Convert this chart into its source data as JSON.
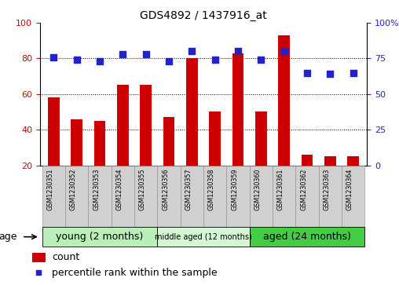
{
  "title": "GDS4892 / 1437916_at",
  "samples": [
    "GSM1230351",
    "GSM1230352",
    "GSM1230353",
    "GSM1230354",
    "GSM1230355",
    "GSM1230356",
    "GSM1230357",
    "GSM1230358",
    "GSM1230359",
    "GSM1230360",
    "GSM1230361",
    "GSM1230362",
    "GSM1230363",
    "GSM1230364"
  ],
  "count_values": [
    58,
    46,
    45,
    65,
    65,
    47,
    80,
    50,
    83,
    50,
    93,
    26,
    25,
    25
  ],
  "percentile_values": [
    76,
    74,
    73,
    78,
    78,
    73,
    80,
    74,
    80,
    74,
    80,
    65,
    64,
    65
  ],
  "bar_color": "#cc0000",
  "dot_color": "#2222cc",
  "ylim_left": [
    20,
    100
  ],
  "ylim_right": [
    0,
    100
  ],
  "yticks_left": [
    20,
    40,
    60,
    80,
    100
  ],
  "ytick_labels_left": [
    "20",
    "40",
    "60",
    "80",
    "100"
  ],
  "ytick_labels_right": [
    "0",
    "25",
    "50",
    "75",
    "100%"
  ],
  "groups": [
    {
      "label": "young (2 months)",
      "start": 0,
      "end": 4,
      "color": "#b8f0b8"
    },
    {
      "label": "middle aged (12 months)",
      "start": 5,
      "end": 8,
      "color": "#d4f7d4"
    },
    {
      "label": "aged (24 months)",
      "start": 9,
      "end": 13,
      "color": "#44cc44"
    }
  ],
  "age_label": "age",
  "legend_count_label": "count",
  "legend_pct_label": "percentile rank within the sample",
  "background_color": "#ffffff",
  "tick_color_left": "#cc0000",
  "tick_color_right": "#2222cc",
  "bar_width": 0.5,
  "dot_size": 28,
  "grid_yticks": [
    40,
    60,
    80
  ]
}
